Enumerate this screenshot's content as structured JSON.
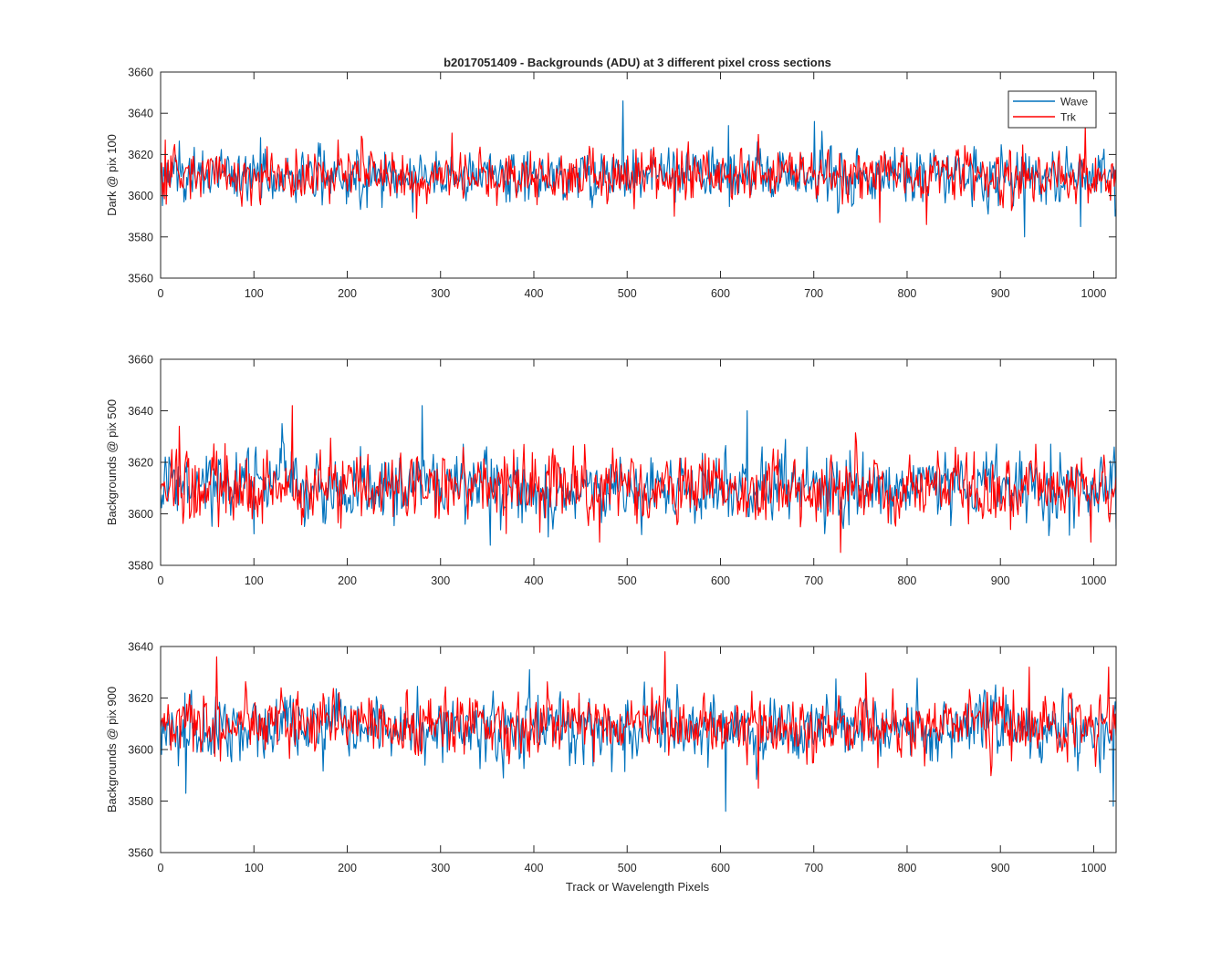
{
  "chart_data": {
    "type": "line",
    "title": "b2017051409 - Backgrounds (ADU) at 3 different pixel cross sections",
    "xlabel": "Track or Wavelength Pixels",
    "xlim": [
      0,
      1024
    ],
    "xticks": [
      0,
      100,
      200,
      300,
      400,
      500,
      600,
      700,
      800,
      900,
      1000
    ],
    "legend": {
      "placement": "top-right",
      "entries": [
        {
          "name": "Wave",
          "color": "#0072BD"
        },
        {
          "name": "Trk",
          "color": "#FF0000"
        }
      ]
    },
    "panels": [
      {
        "ylabel": "Dark @ pix 100",
        "ylim": [
          3560,
          3660
        ],
        "yticks": [
          3560,
          3580,
          3600,
          3620,
          3640,
          3660
        ],
        "series": [
          {
            "name": "Wave",
            "color": "#0072BD",
            "n_points": 1024,
            "mean": 3610,
            "noise_sd": 6.5,
            "spikes": [
              {
                "x": 495,
                "y": 3646
              },
              {
                "x": 925,
                "y": 3580
              },
              {
                "x": 700,
                "y": 3636
              },
              {
                "x": 608,
                "y": 3634
              },
              {
                "x": 985,
                "y": 3585
              },
              {
                "x": 270,
                "y": 3592
              }
            ]
          },
          {
            "name": "Trk",
            "color": "#FF0000",
            "n_points": 1024,
            "mean": 3610,
            "noise_sd": 6,
            "spikes": [
              {
                "x": 5,
                "y": 3627
              },
              {
                "x": 770,
                "y": 3587
              },
              {
                "x": 990,
                "y": 3634
              },
              {
                "x": 550,
                "y": 3590
              },
              {
                "x": 820,
                "y": 3586
              }
            ]
          }
        ]
      },
      {
        "ylabel": "Backgrounds @ pix 500",
        "ylim": [
          3580,
          3660
        ],
        "yticks": [
          3580,
          3600,
          3620,
          3640,
          3660
        ],
        "series": [
          {
            "name": "Wave",
            "color": "#0072BD",
            "n_points": 1024,
            "mean": 3610,
            "noise_sd": 6.5,
            "spikes": [
              {
                "x": 280,
                "y": 3642
              },
              {
                "x": 628,
                "y": 3640
              },
              {
                "x": 130,
                "y": 3635
              },
              {
                "x": 415,
                "y": 3591
              },
              {
                "x": 1024,
                "y": 3594
              }
            ]
          },
          {
            "name": "Trk",
            "color": "#FF0000",
            "n_points": 1024,
            "mean": 3610,
            "noise_sd": 6.5,
            "spikes": [
              {
                "x": 141,
                "y": 3642
              },
              {
                "x": 728,
                "y": 3585
              },
              {
                "x": 470,
                "y": 3589
              },
              {
                "x": 20,
                "y": 3634
              },
              {
                "x": 996,
                "y": 3589
              }
            ]
          }
        ]
      },
      {
        "ylabel": "Backgrounds @ pix 900",
        "ylim": [
          3560,
          3640
        ],
        "yticks": [
          3560,
          3580,
          3600,
          3620,
          3640
        ],
        "series": [
          {
            "name": "Wave",
            "color": "#0072BD",
            "n_points": 1024,
            "mean": 3608,
            "noise_sd": 6.5,
            "spikes": [
              {
                "x": 605,
                "y": 3576
              },
              {
                "x": 27,
                "y": 3583
              },
              {
                "x": 1020,
                "y": 3578
              },
              {
                "x": 395,
                "y": 3631
              }
            ]
          },
          {
            "name": "Trk",
            "color": "#FF0000",
            "n_points": 1024,
            "mean": 3610,
            "noise_sd": 6,
            "spikes": [
              {
                "x": 60,
                "y": 3636
              },
              {
                "x": 540,
                "y": 3638
              },
              {
                "x": 640,
                "y": 3585
              },
              {
                "x": 1015,
                "y": 3632
              },
              {
                "x": 930,
                "y": 3632
              }
            ]
          }
        ]
      }
    ]
  }
}
